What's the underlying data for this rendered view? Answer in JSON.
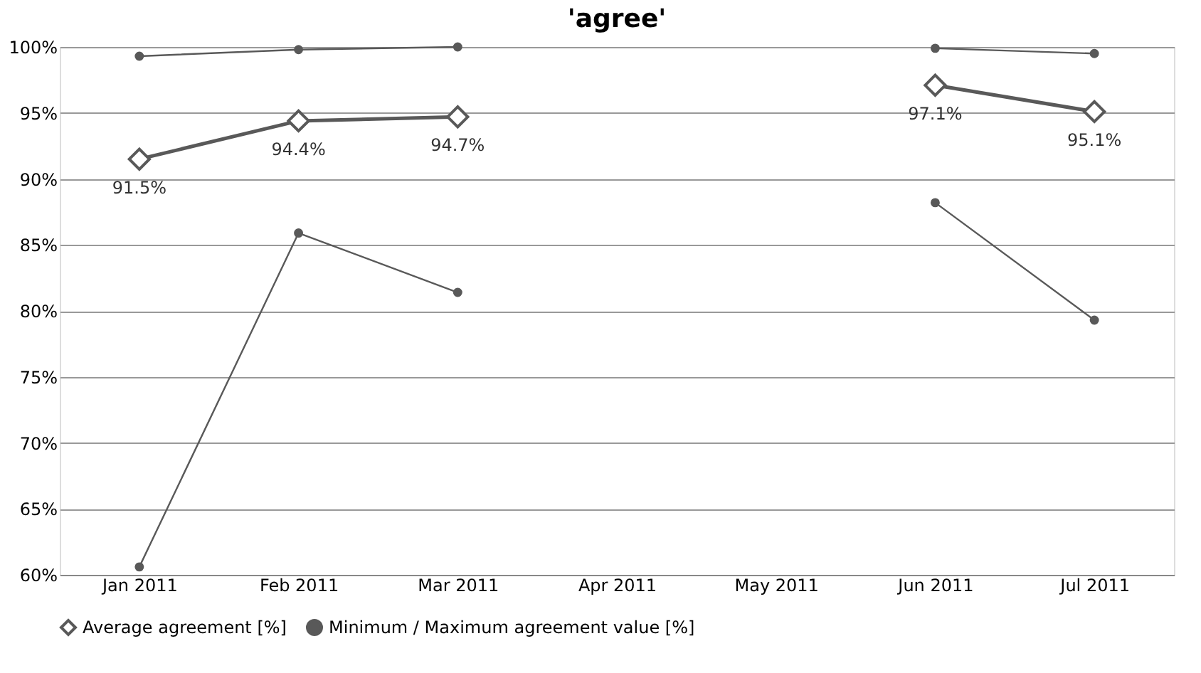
{
  "chart_data": {
    "type": "line",
    "title": "'agree'",
    "categories": [
      "Jan 2011",
      "Feb 2011",
      "Mar 2011",
      "Apr 2011",
      "May 2011",
      "Jun 2011",
      "Jul 2011"
    ],
    "series": [
      {
        "name": "Average agreement [%]",
        "color": "#595959",
        "marker": "diamond",
        "values": [
          91.5,
          94.4,
          94.7,
          null,
          null,
          97.1,
          95.1
        ],
        "value_labels": [
          "91.5%",
          "94.4%",
          "94.7%",
          null,
          null,
          "97.1%",
          "95.1%"
        ]
      },
      {
        "name": "Minimum / Maximum agreement value [%]",
        "color": "#595959",
        "marker": "circle",
        "values": [
          99.3,
          99.8,
          100,
          null,
          null,
          99.9,
          99.5
        ]
      },
      {
        "color": "#595959",
        "marker": "circle",
        "values": [
          60.6,
          85.9,
          81.4,
          null,
          null,
          88.2,
          79.3
        ]
      }
    ],
    "ylim": [
      60,
      100
    ],
    "yticks": [
      {
        "value": 60,
        "label": "60%"
      },
      {
        "value": 65,
        "label": "65%"
      },
      {
        "value": 70,
        "label": "70%"
      },
      {
        "value": 75,
        "label": "75%"
      },
      {
        "value": 80,
        "label": "80%"
      },
      {
        "value": 85,
        "label": "85%"
      },
      {
        "value": 90,
        "label": "90%"
      },
      {
        "value": 95,
        "label": "95%"
      },
      {
        "value": 100,
        "label": "100%"
      }
    ],
    "grid": "y",
    "legend": "bottom"
  }
}
